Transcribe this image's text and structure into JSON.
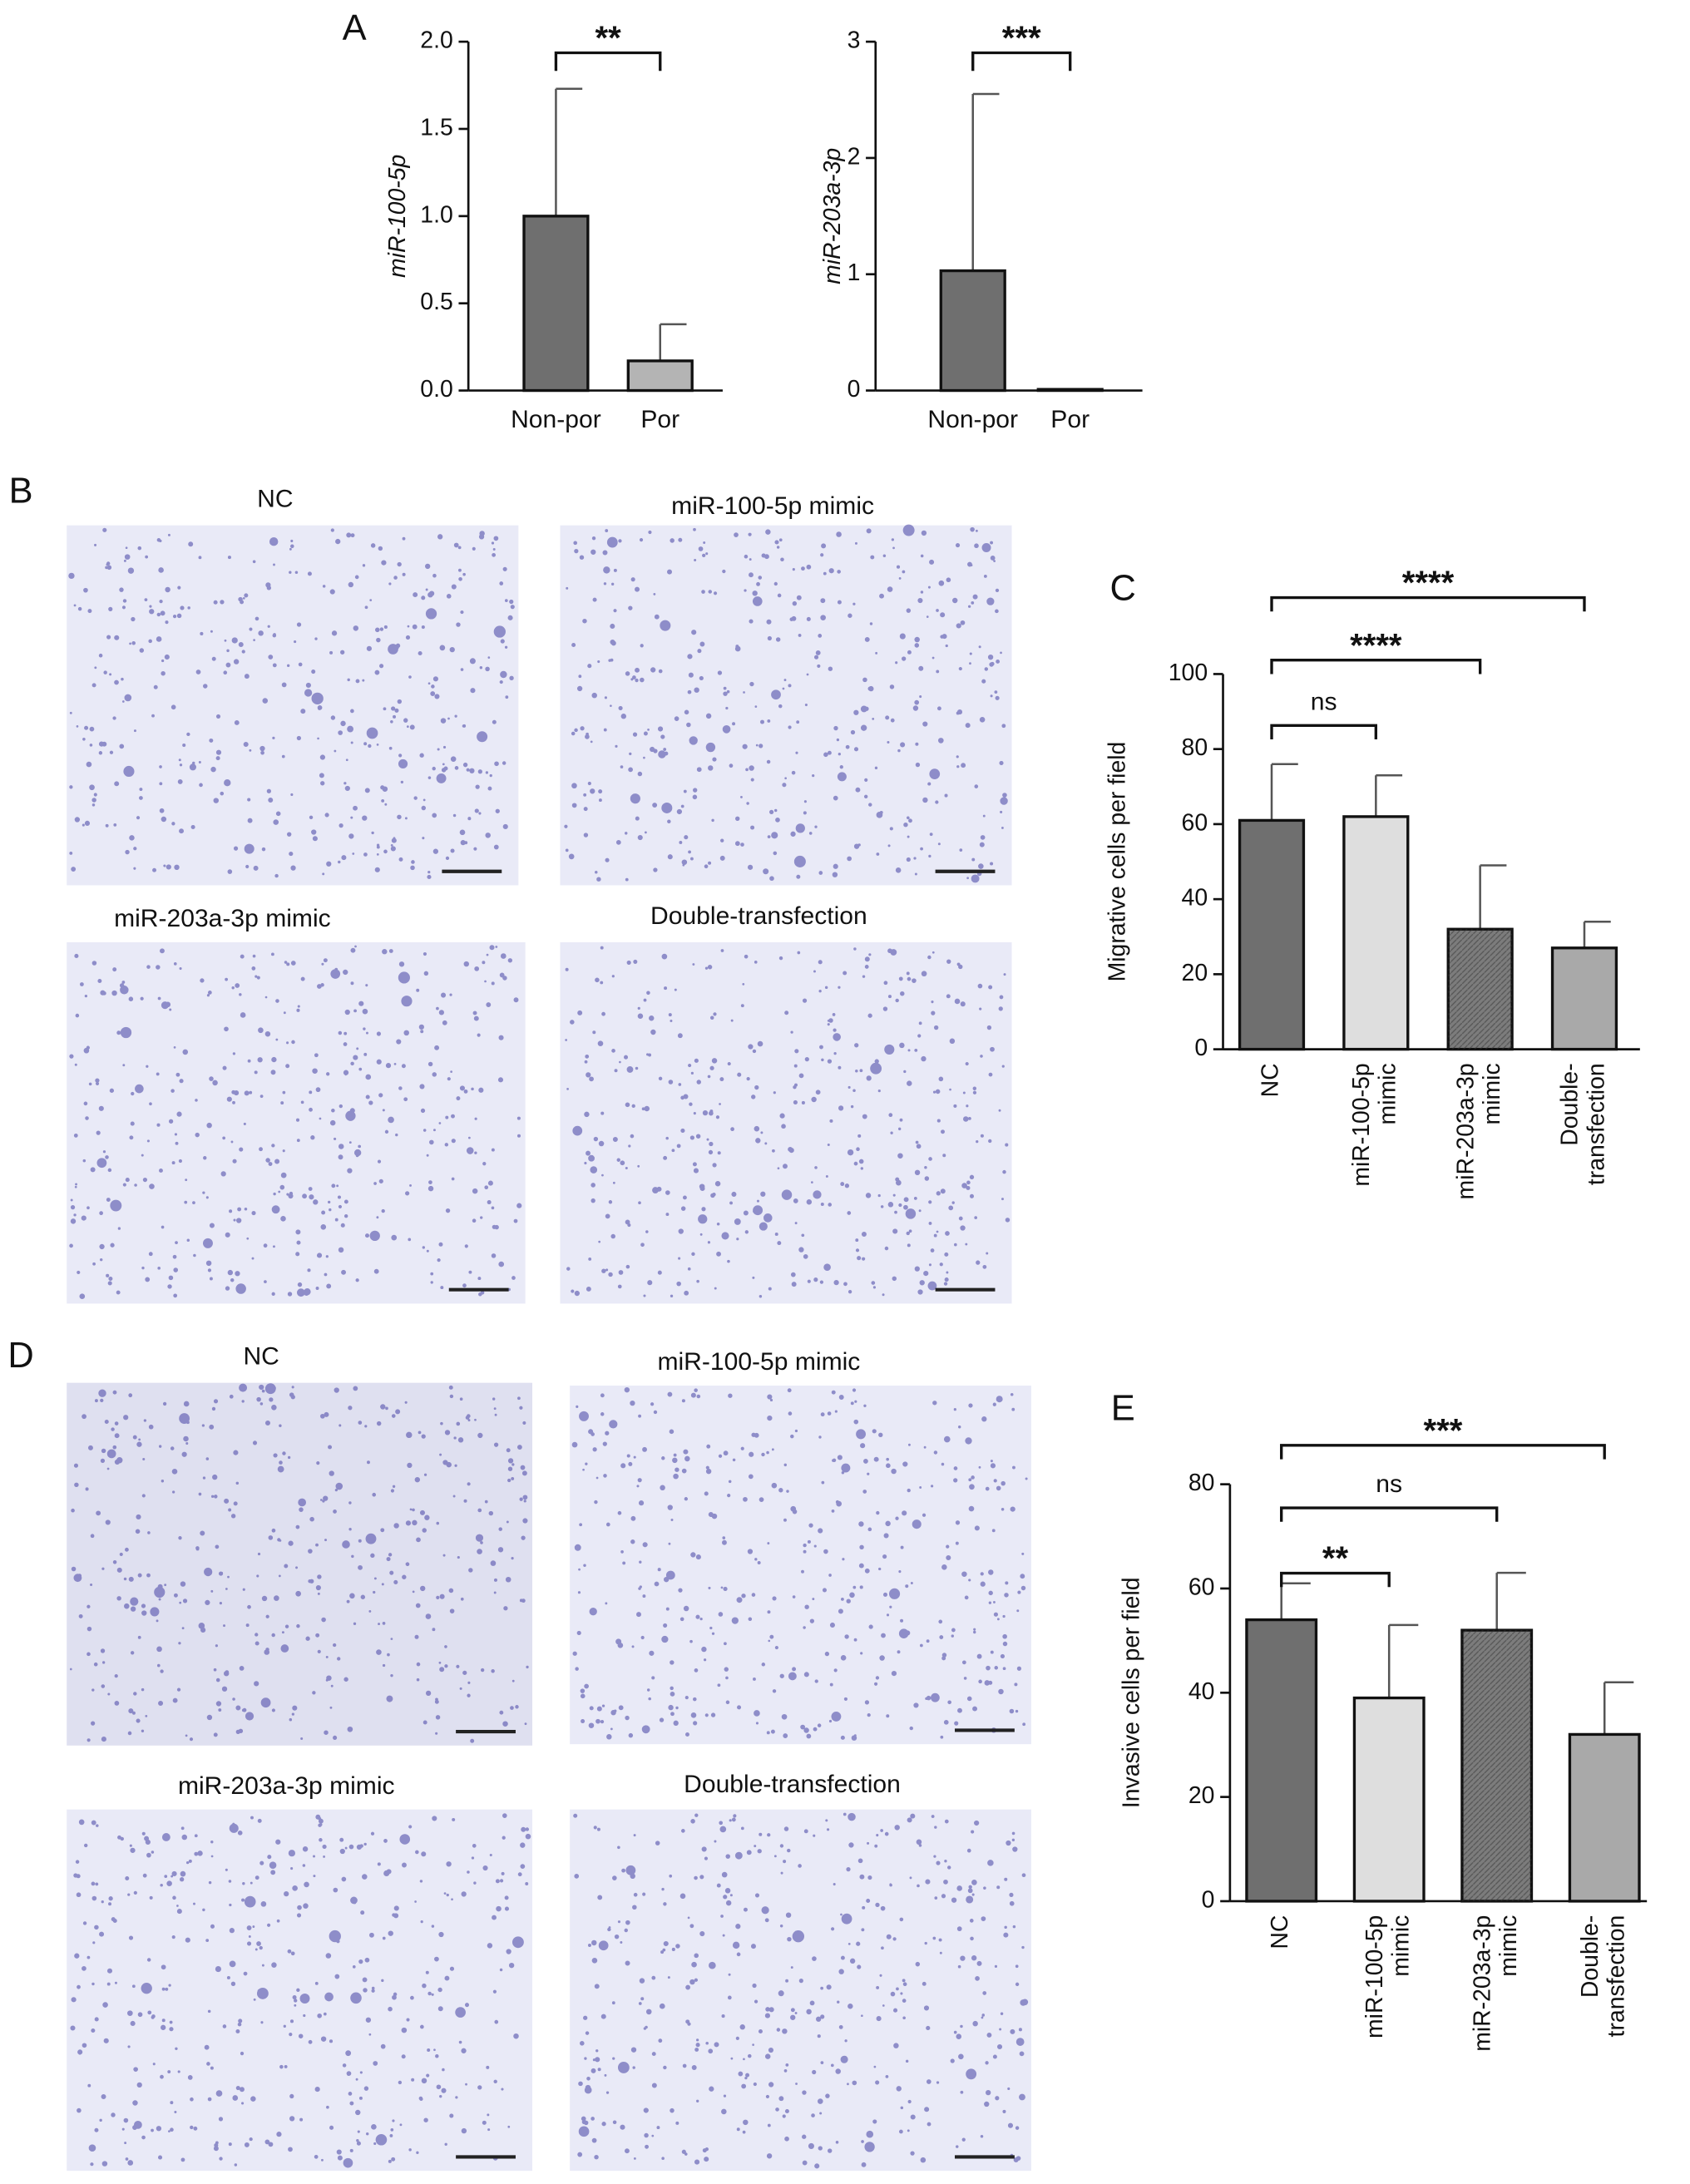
{
  "figure": {
    "panel_labels": [
      "A",
      "B",
      "C",
      "D",
      "E"
    ],
    "panel_B_titles": [
      "NC",
      "miR-100-5p mimic",
      "miR-203a-3p mimic",
      "Double-transfection"
    ],
    "panel_D_titles": [
      "NC",
      "miR-100-5p mimic",
      "miR-203a-3p mimic",
      "Double-transfection"
    ]
  },
  "chart_data": [
    {
      "type": "bar",
      "ylabel": "miR-100-5p",
      "categories": [
        [
          "Non-por"
        ],
        [
          "Por"
        ]
      ],
      "values": [
        1.0,
        0.17
      ],
      "errors": [
        0.73,
        0.21
      ],
      "colors": [
        "#6f6f6f",
        "#b4b4b4"
      ],
      "ylim": [
        0,
        2
      ],
      "yticks": [
        {
          "value": 0,
          "label": "0.0"
        },
        0.5,
        {
          "value": 1,
          "label": "1.0"
        },
        1.5,
        {
          "value": 2,
          "label": "2.0"
        }
      ],
      "comparisons": [
        {
          "label": "**",
          "groups": [
            0,
            1
          ]
        }
      ]
    },
    {
      "type": "bar",
      "ylabel": "miR-203a-3p",
      "categories": [
        [
          "Non-por"
        ],
        [
          "Por"
        ]
      ],
      "values": [
        1.03,
        0.01
      ],
      "errors": [
        1.52,
        0
      ],
      "colors": [
        "#6f6f6f",
        "#b4b4b4"
      ],
      "ylim": [
        0,
        3
      ],
      "yticks": [
        0,
        1,
        2,
        3
      ],
      "comparisons": [
        {
          "label": "***",
          "groups": [
            0,
            1
          ]
        }
      ]
    },
    {
      "type": "bar",
      "ylabel": "Migrative cells per field",
      "categories": [
        [
          "NC"
        ],
        [
          "miR-100-5p",
          "mimic"
        ],
        [
          "miR-203a-3p",
          "mimic"
        ],
        [
          "Double-",
          "transfection"
        ]
      ],
      "values": [
        61,
        62,
        32,
        27
      ],
      "errors": [
        15,
        11,
        17,
        7
      ],
      "colors": [
        "#6f6f6f",
        "#dedede",
        "#7c7c7c",
        "#a9a9a9"
      ],
      "ylim": [
        0,
        100
      ],
      "yticks": [
        0,
        20,
        40,
        60,
        80,
        100
      ],
      "comparisons": [
        {
          "label": "ns",
          "groups": [
            0,
            1
          ]
        },
        {
          "label": "****",
          "groups": [
            0,
            2
          ]
        },
        {
          "label": "****",
          "groups": [
            0,
            3
          ]
        }
      ]
    },
    {
      "type": "bar",
      "ylabel": "Invasive cells per field",
      "categories": [
        [
          "NC"
        ],
        [
          "miR-100-5p",
          "mimic"
        ],
        [
          "miR-203a-3p",
          "mimic"
        ],
        [
          "Double-",
          "transfection"
        ]
      ],
      "values": [
        54,
        39,
        52,
        32
      ],
      "errors": [
        7,
        14,
        11,
        10
      ],
      "colors": [
        "#6f6f6f",
        "#dedede",
        "#7c7c7c",
        "#a9a9a9"
      ],
      "ylim": [
        0,
        80
      ],
      "yticks": [
        0,
        20,
        40,
        60,
        80
      ],
      "comparisons": [
        {
          "label": "**",
          "groups": [
            0,
            1
          ]
        },
        {
          "label": "ns",
          "groups": [
            0,
            2
          ]
        },
        {
          "label": "***",
          "groups": [
            0,
            3
          ]
        }
      ]
    }
  ]
}
